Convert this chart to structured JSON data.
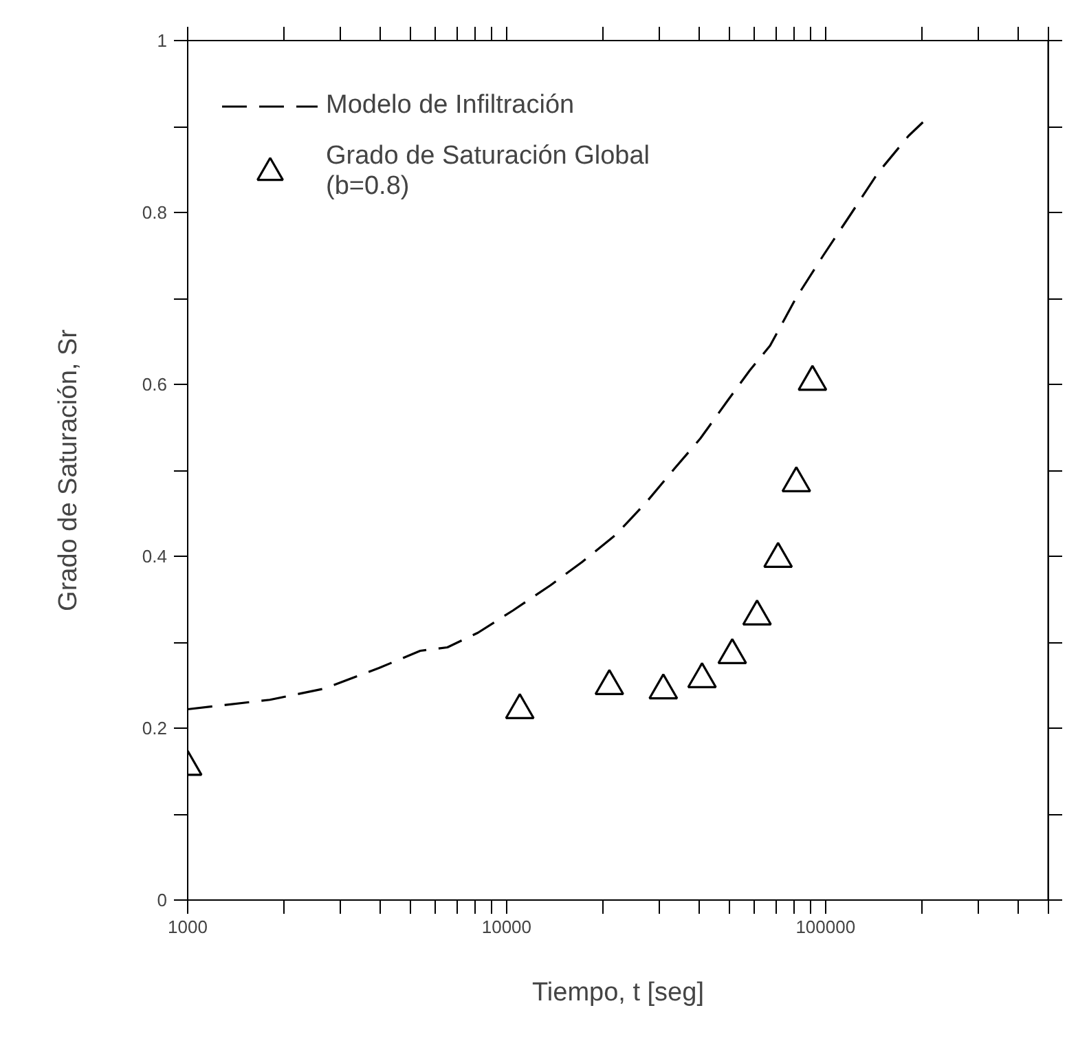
{
  "chart_data": {
    "type": "scatter",
    "xlabel": "Tiempo, t [seg]",
    "ylabel": "Grado de Saturación, Sr",
    "log": "x",
    "grid": false,
    "legend": "top left",
    "xlim": [
      1000,
      500000
    ],
    "ylim": [
      0,
      1
    ],
    "xticks": [
      1000,
      10000,
      100000,
      {
        "value": 2000,
        "label": null
      },
      {
        "value": 3000,
        "label": null
      },
      {
        "value": 4000,
        "label": null
      },
      {
        "value": 5000,
        "label": null
      },
      {
        "value": 6000,
        "label": null
      },
      {
        "value": 7000,
        "label": null
      },
      {
        "value": 8000,
        "label": null
      },
      {
        "value": 9000,
        "label": null
      },
      {
        "value": 20000,
        "label": null
      },
      {
        "value": 30000,
        "label": null
      },
      {
        "value": 40000,
        "label": null
      },
      {
        "value": 50000,
        "label": null
      },
      {
        "value": 60000,
        "label": null
      },
      {
        "value": 70000,
        "label": null
      },
      {
        "value": 80000,
        "label": null
      },
      {
        "value": 90000,
        "label": null
      },
      {
        "value": 200000,
        "label": null
      },
      {
        "value": 300000,
        "label": null
      },
      {
        "value": 400000,
        "label": null
      },
      {
        "value": 500000,
        "label": null
      }
    ],
    "yticks": [
      0,
      0.2,
      0.4,
      0.6,
      0.8,
      1,
      {
        "value": 0.1,
        "label": null
      },
      {
        "value": 0.3,
        "label": null
      },
      {
        "value": 0.5,
        "label": null
      },
      {
        "value": 0.7,
        "label": null
      },
      {
        "value": 0.9,
        "label": null
      }
    ],
    "series": [
      {
        "name": "Modelo de Infiltración",
        "type": "line",
        "line_style": "dashed",
        "marker": "none",
        "color": "#000000",
        "x": [
          1000,
          1810,
          2680,
          3980,
          5360,
          6520,
          8130,
          10480,
          13700,
          17200,
          22000,
          27300,
          33600,
          40500,
          49300,
          57800,
          67000,
          80700,
          98400,
          120000,
          146000,
          182000,
          202000
        ],
        "values": [
          0.222,
          0.233,
          0.246,
          0.27,
          0.29,
          0.294,
          0.311,
          0.337,
          0.366,
          0.393,
          0.425,
          0.462,
          0.502,
          0.537,
          0.581,
          0.616,
          0.645,
          0.7,
          0.75,
          0.798,
          0.846,
          0.889,
          0.905
        ]
      },
      {
        "name": "Grado de Saturación Global (b=0.8)",
        "marker": "triangle",
        "color": "#000000",
        "x": [
          1000,
          11000,
          21000,
          31000,
          41000,
          51000,
          61000,
          71000,
          81000,
          91000
        ],
        "values": [
          0.155,
          0.221,
          0.249,
          0.244,
          0.257,
          0.285,
          0.33,
          0.397,
          0.485,
          0.603
        ]
      }
    ]
  }
}
